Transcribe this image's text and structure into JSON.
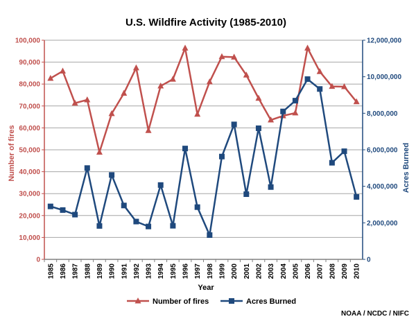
{
  "chart_data": {
    "type": "line",
    "title": "U.S. Wildfire Activity (1985-2010)",
    "xlabel": "Year",
    "x": [
      "1985",
      "1986",
      "1987",
      "1988",
      "1989",
      "1990",
      "1991",
      "1992",
      "1993",
      "1994",
      "1995",
      "1996",
      "1997",
      "1998",
      "1999",
      "2000",
      "2001",
      "2002",
      "2003",
      "2004",
      "2005",
      "2006",
      "2007",
      "2008",
      "2009",
      "2010"
    ],
    "y_left": {
      "label": "Number of fires",
      "lim": [
        0,
        100000
      ],
      "ticks": [
        "0",
        "10,000",
        "20,000",
        "30,000",
        "40,000",
        "50,000",
        "60,000",
        "70,000",
        "80,000",
        "90,000",
        "100,000"
      ]
    },
    "y_right": {
      "label": "Acres Burned",
      "lim": [
        0,
        12000000
      ],
      "ticks": [
        "0",
        "2,000,000",
        "4,000,000",
        "6,000,000",
        "8,000,000",
        "10,000,000",
        "12,000,000"
      ]
    },
    "grid": true,
    "legend_position": "bottom-center",
    "series": [
      {
        "name": "Number of fires",
        "axis": "left",
        "marker": "triangle",
        "color": "#c0504d",
        "values": [
          82600,
          85900,
          71300,
          72800,
          48900,
          66500,
          75800,
          87400,
          58800,
          79100,
          82200,
          96400,
          66200,
          81000,
          92500,
          92300,
          84100,
          73500,
          63600,
          65500,
          66800,
          96400,
          85700,
          78900,
          78800,
          71900
        ]
      },
      {
        "name": "Acres Burned",
        "axis": "right",
        "marker": "square",
        "color": "#1f497d",
        "values": [
          2900000,
          2700000,
          2450000,
          5000000,
          1830000,
          4620000,
          2950000,
          2070000,
          1800000,
          4070000,
          1840000,
          6070000,
          2860000,
          1330000,
          5630000,
          7390000,
          3570000,
          7180000,
          3960000,
          8100000,
          8690000,
          9870000,
          9330000,
          5290000,
          5920000,
          3420000
        ]
      }
    ],
    "source_note": "NOAA / NCDC / NIFC"
  }
}
